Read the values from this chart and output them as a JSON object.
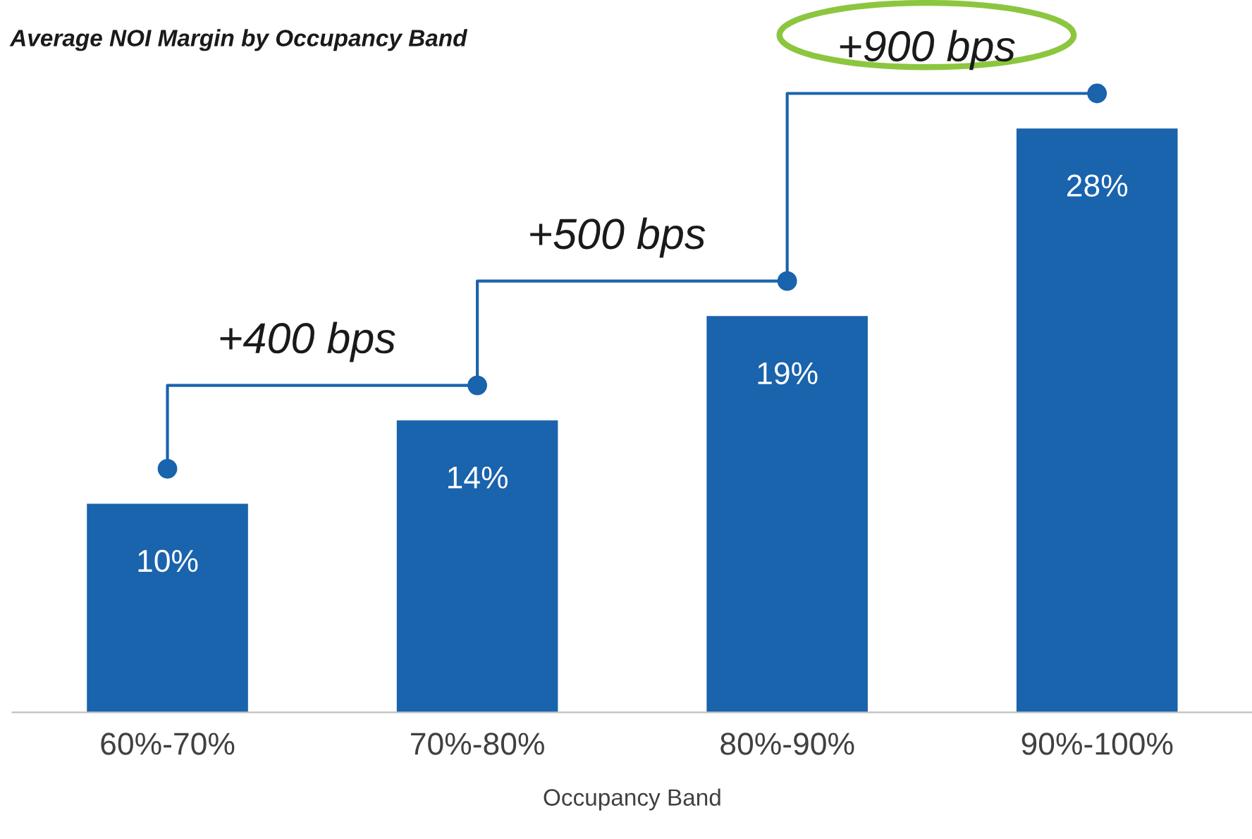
{
  "chart_data": {
    "type": "bar",
    "title": "Average NOI Margin by Occupancy Band",
    "xlabel": "Occupancy Band",
    "categories": [
      "60%-70%",
      "70%-80%",
      "80%-90%",
      "90%-100%"
    ],
    "values": [
      10,
      14,
      19,
      28
    ],
    "color": "#1a63ad",
    "value_labels": [
      "10%",
      "14%",
      "19%",
      "28%"
    ],
    "annotations": [
      "+400 bps",
      "+500 bps",
      "+900 bps"
    ],
    "grid": false,
    "legend": false,
    "tick_labels": "x"
  }
}
